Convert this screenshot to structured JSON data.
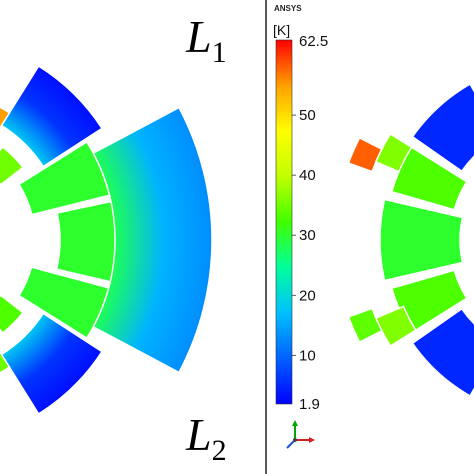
{
  "labels": {
    "top": {
      "letter": "L",
      "sub": "1"
    },
    "bottom": {
      "letter": "L",
      "sub": "2"
    }
  },
  "legend": {
    "brand": "ANSYS",
    "unit": "[K]",
    "max_label": "62.5",
    "min_label": "1.9",
    "ticks": [
      "50",
      "40",
      "30",
      "20",
      "10"
    ],
    "tick_values": [
      50,
      40,
      30,
      20,
      10
    ],
    "min": 1.9,
    "max": 62.5
  },
  "colors": {
    "background": "#ffffff",
    "divider": "#222222",
    "segment_edge": "#ffffff"
  },
  "colormap": [
    "#0000ff",
    "#0060ff",
    "#00c0ff",
    "#00ff9c",
    "#40ff00",
    "#c0ff00",
    "#ffff00",
    "#ffa000",
    "#ff0000"
  ],
  "segments_left": [
    {
      "name": "outer-top-right",
      "temp": 6,
      "grad": true
    },
    {
      "name": "outer-top-small",
      "temp": 35
    },
    {
      "name": "outer-top-left",
      "temp": 55
    },
    {
      "name": "mid-upper",
      "temp": 30
    },
    {
      "name": "inner-center",
      "temp": 30
    },
    {
      "name": "mid-lower",
      "temp": 30
    },
    {
      "name": "outer-bot-small",
      "temp": 33
    },
    {
      "name": "outer-bot-right",
      "temp": 6,
      "grad": true
    },
    {
      "name": "big-right",
      "temp": 16,
      "grad": true
    },
    {
      "name": "outer-bot-left",
      "temp": 35
    }
  ],
  "segments_right": [
    {
      "name": "r-outer-top",
      "temp": 5
    },
    {
      "name": "r-red-bar",
      "temp": 58
    },
    {
      "name": "r-small-upper",
      "temp": 36
    },
    {
      "name": "r-mid-upper",
      "temp": 33
    },
    {
      "name": "r-inner",
      "temp": 30
    },
    {
      "name": "r-mid-lower",
      "temp": 33
    },
    {
      "name": "r-small-lower",
      "temp": 36
    },
    {
      "name": "r-small-lower2",
      "temp": 34
    },
    {
      "name": "r-outer-bot",
      "temp": 5
    }
  ]
}
